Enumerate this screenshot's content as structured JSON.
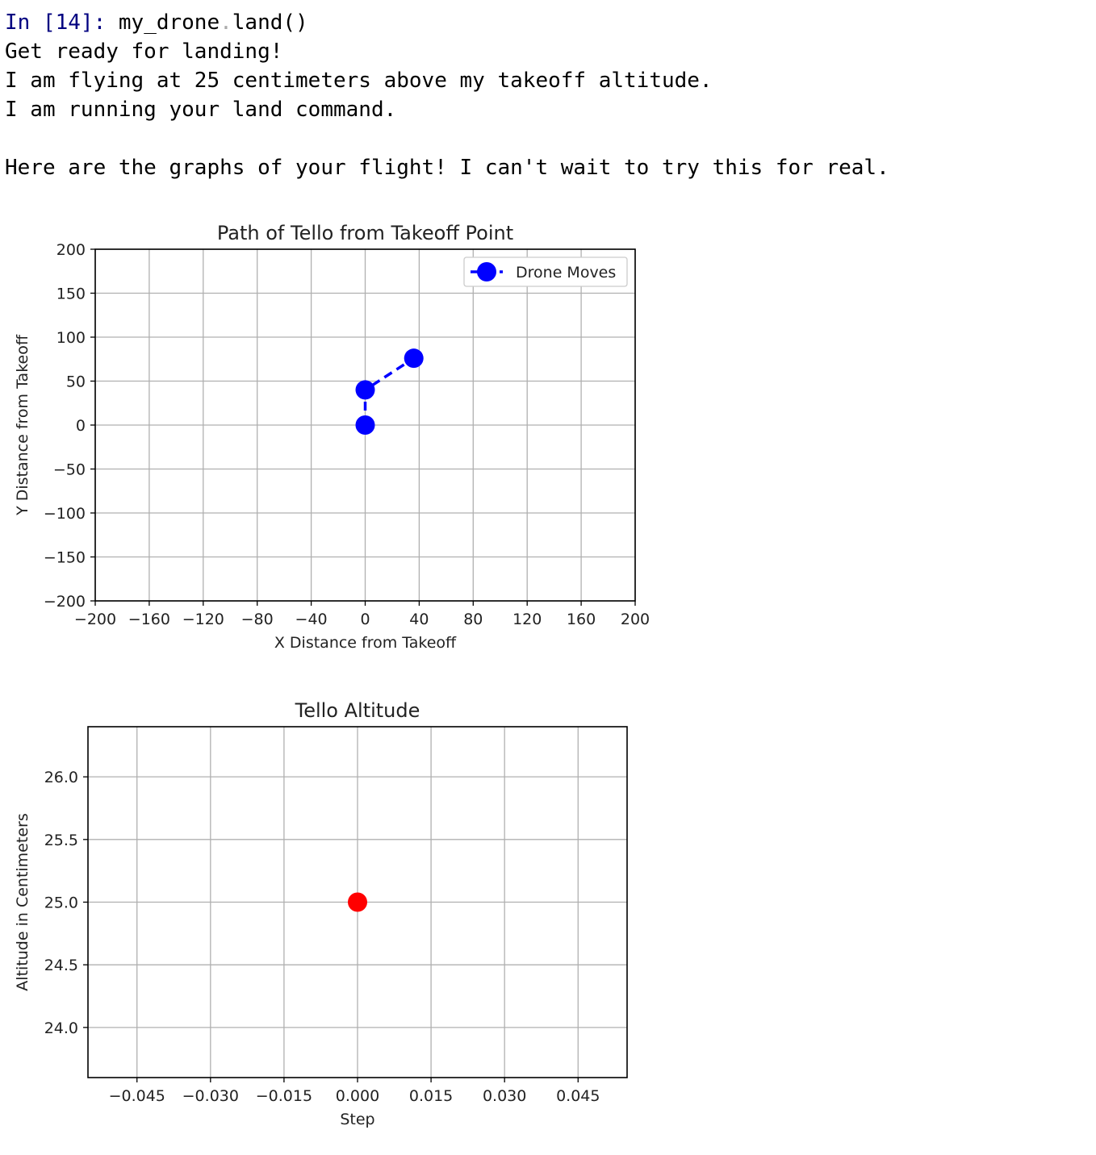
{
  "cell": {
    "prompt": "In [14]:",
    "code": {
      "object": "my_drone",
      "dot": ".",
      "call": "land()"
    }
  },
  "output": {
    "lines": [
      "Get ready for landing!",
      "I am flying at 25 centimeters above my takeoff altitude.",
      "I am running your land command.",
      "",
      "Here are the graphs of your flight! I can't wait to try this for real."
    ]
  },
  "colors": {
    "prompt": "#000080",
    "path_series": "#0000ff",
    "altitude_series": "#ff0000",
    "grid": "#b0b0b0"
  },
  "chart_data": [
    {
      "type": "line",
      "title": "Path of Tello from Takeoff Point",
      "xlabel": "X Distance from Takeoff",
      "ylabel": "Y Distance from Takeoff",
      "xlim": [
        -200,
        200
      ],
      "ylim": [
        -200,
        200
      ],
      "xticks": [
        -200,
        -160,
        -120,
        -80,
        -40,
        0,
        40,
        80,
        120,
        160,
        200
      ],
      "yticks": [
        -200,
        -150,
        -100,
        -50,
        0,
        50,
        100,
        150,
        200
      ],
      "xtick_labels": [
        "−200",
        "−160",
        "−120",
        "−80",
        "−40",
        "0",
        "40",
        "80",
        "120",
        "160",
        "200"
      ],
      "ytick_labels": [
        "−200",
        "−150",
        "−100",
        "−50",
        "0",
        "50",
        "100",
        "150",
        "200"
      ],
      "grid": true,
      "legend": "top-right",
      "series": [
        {
          "name": "Drone Moves",
          "color": "#0000ff",
          "line_style": "dashed",
          "marker": "circle",
          "points": [
            [
              0,
              0
            ],
            [
              0,
              40
            ],
            [
              36,
              76
            ]
          ]
        }
      ]
    },
    {
      "type": "scatter",
      "title": "Tello Altitude",
      "xlabel": "Step",
      "ylabel": "Altitude in Centimeters",
      "xlim": [
        -0.055,
        0.055
      ],
      "ylim": [
        23.6,
        26.4
      ],
      "xticks": [
        -0.045,
        -0.03,
        -0.015,
        0,
        0.015,
        0.03,
        0.045
      ],
      "yticks": [
        24.0,
        24.5,
        25.0,
        25.5,
        26.0
      ],
      "xtick_labels": [
        "−0.045",
        "−0.030",
        "−0.015",
        "0.000",
        "0.015",
        "0.030",
        "0.045"
      ],
      "ytick_labels": [
        "24.0",
        "24.5",
        "25.0",
        "25.5",
        "26.0"
      ],
      "grid": true,
      "series": [
        {
          "color": "#ff0000",
          "marker": "circle",
          "points": [
            [
              0,
              25
            ]
          ]
        }
      ]
    }
  ]
}
